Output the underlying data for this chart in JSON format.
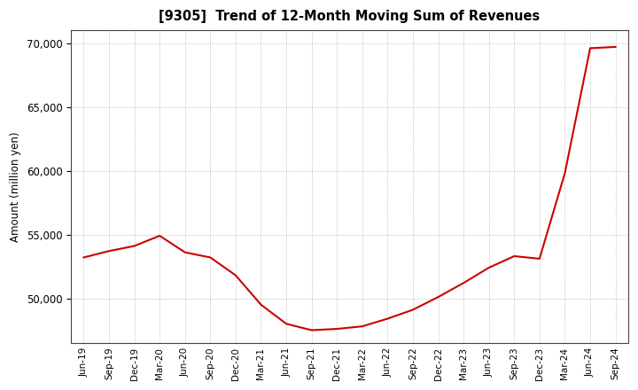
{
  "title": "[9305]  Trend of 12-Month Moving Sum of Revenues",
  "ylabel": "Amount (million yen)",
  "line_color": "#cc0000",
  "background_color": "#ffffff",
  "plot_bg_color": "#ffffff",
  "grid_color": "#999999",
  "ylim": [
    46500,
    71000
  ],
  "yticks": [
    50000,
    55000,
    60000,
    65000,
    70000
  ],
  "x_labels": [
    "Jun-19",
    "Sep-19",
    "Dec-19",
    "Mar-20",
    "Jun-20",
    "Sep-20",
    "Dec-20",
    "Mar-21",
    "Jun-21",
    "Sep-21",
    "Dec-21",
    "Mar-22",
    "Jun-22",
    "Sep-22",
    "Dec-22",
    "Mar-23",
    "Jun-23",
    "Sep-23",
    "Dec-23",
    "Mar-24",
    "Jun-24",
    "Sep-24"
  ],
  "values": [
    53200,
    53700,
    54100,
    54900,
    53600,
    53200,
    51800,
    49500,
    48000,
    47500,
    47600,
    47800,
    48400,
    49100,
    50100,
    51200,
    52400,
    53300,
    53100,
    59800,
    69600,
    69700
  ]
}
